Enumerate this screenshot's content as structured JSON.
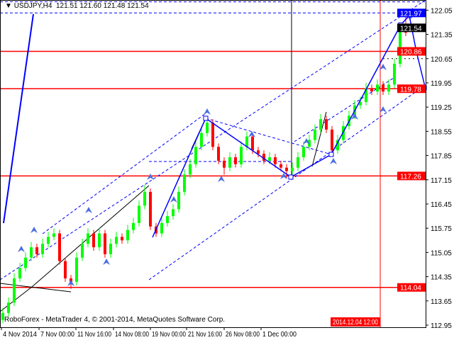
{
  "header": {
    "symbol": "USDJPY,H4",
    "ohlc": "121.51 121.60 121.48 121.54"
  },
  "footer": {
    "copyright": "RoboForex - MetaTrader 4, © 2001-2014, MetaQuotes Software Corp."
  },
  "chart_data": {
    "type": "candlestick",
    "title": "USDJPY,H4",
    "ylim": [
      112.95,
      122.25
    ],
    "y_ticks": [
      "122.05",
      "121.35",
      "120.65",
      "119.95",
      "119.25",
      "118.55",
      "117.85",
      "117.15",
      "116.45",
      "115.75",
      "115.05",
      "114.35",
      "113.65",
      "112.95"
    ],
    "x_ticks": [
      "4 Nov 2014",
      "7 Nov 00:00",
      "11 Nov 16:00",
      "14 Nov 08:00",
      "19 Nov 00:00",
      "21 Nov 16:00",
      "26 Nov 08:00",
      "1 Dec 00:00"
    ],
    "x_cursor_label": "2014.12.04 12:00",
    "current_price": "121.54",
    "price_levels": [
      {
        "label": "121.97",
        "value": 121.97,
        "color": "#0000ff",
        "style": "dashed"
      },
      {
        "label": "120.86",
        "value": 120.86,
        "color": "#ff0000",
        "style": "solid"
      },
      {
        "label": "119.78",
        "value": 119.78,
        "color": "#ff0000",
        "style": "solid"
      },
      {
        "label": "117.26",
        "value": 117.26,
        "color": "#ff0000",
        "style": "solid"
      },
      {
        "label": "114.04",
        "value": 114.04,
        "color": "#ff0000",
        "style": "solid"
      }
    ],
    "colors": {
      "bull": "#00ff00",
      "bear": "#ff0000",
      "lines": "#0000ff",
      "levels": "#ff0000"
    },
    "candles": [
      [
        113.1,
        113.45,
        113.0,
        113.3
      ],
      [
        113.3,
        113.75,
        113.2,
        113.6
      ],
      [
        113.6,
        114.45,
        113.5,
        114.3
      ],
      [
        114.3,
        114.75,
        114.2,
        114.6
      ],
      [
        114.6,
        115.05,
        114.5,
        114.9
      ],
      [
        114.9,
        115.35,
        114.8,
        115.2
      ],
      [
        115.2,
        115.3,
        114.9,
        115.0
      ],
      [
        115.0,
        115.45,
        114.9,
        115.3
      ],
      [
        115.3,
        115.65,
        115.2,
        115.5
      ],
      [
        115.5,
        115.75,
        115.4,
        115.6
      ],
      [
        115.6,
        115.7,
        114.7,
        114.8
      ],
      [
        114.8,
        114.9,
        114.2,
        114.3
      ],
      [
        114.3,
        114.4,
        114.0,
        114.2
      ],
      [
        114.2,
        115.05,
        114.1,
        114.9
      ],
      [
        114.9,
        115.45,
        114.8,
        115.3
      ],
      [
        115.3,
        115.75,
        115.2,
        115.6
      ],
      [
        115.6,
        115.7,
        115.1,
        115.2
      ],
      [
        115.2,
        115.75,
        115.1,
        115.6
      ],
      [
        115.6,
        115.7,
        114.9,
        115.0
      ],
      [
        115.0,
        115.45,
        114.9,
        115.3
      ],
      [
        115.3,
        115.65,
        115.2,
        115.5
      ],
      [
        115.5,
        115.6,
        115.3,
        115.4
      ],
      [
        115.4,
        115.85,
        115.3,
        115.7
      ],
      [
        115.7,
        116.05,
        115.6,
        115.9
      ],
      [
        115.9,
        116.55,
        115.8,
        116.4
      ],
      [
        116.4,
        117.0,
        116.3,
        116.8
      ],
      [
        116.8,
        116.9,
        115.7,
        115.8
      ],
      [
        115.8,
        115.9,
        115.5,
        115.6
      ],
      [
        115.6,
        116.05,
        115.5,
        115.9
      ],
      [
        115.9,
        116.25,
        115.8,
        116.1
      ],
      [
        116.1,
        116.45,
        116.0,
        116.3
      ],
      [
        116.3,
        116.95,
        116.2,
        116.8
      ],
      [
        116.8,
        117.45,
        116.7,
        117.3
      ],
      [
        117.3,
        117.75,
        117.2,
        117.6
      ],
      [
        117.6,
        118.25,
        117.5,
        118.1
      ],
      [
        118.1,
        118.65,
        118.0,
        118.5
      ],
      [
        118.5,
        118.95,
        118.4,
        118.8
      ],
      [
        118.8,
        118.9,
        118.0,
        118.1
      ],
      [
        118.1,
        118.2,
        117.6,
        117.7
      ],
      [
        117.7,
        117.8,
        117.3,
        117.5
      ],
      [
        117.5,
        117.95,
        117.4,
        117.8
      ],
      [
        117.8,
        117.9,
        117.5,
        117.6
      ],
      [
        117.6,
        118.25,
        117.5,
        118.1
      ],
      [
        118.1,
        118.55,
        118.0,
        118.4
      ],
      [
        118.4,
        118.5,
        117.9,
        118.0
      ],
      [
        118.0,
        118.1,
        117.8,
        117.9
      ],
      [
        117.9,
        118.0,
        117.6,
        117.7
      ],
      [
        117.7,
        117.95,
        117.6,
        117.8
      ],
      [
        117.8,
        117.9,
        117.5,
        117.6
      ],
      [
        117.6,
        117.7,
        117.4,
        117.5
      ],
      [
        117.5,
        117.6,
        117.2,
        117.4
      ],
      [
        117.4,
        117.65,
        117.3,
        117.5
      ],
      [
        117.5,
        117.95,
        117.4,
        117.8
      ],
      [
        117.8,
        118.25,
        117.7,
        118.1
      ],
      [
        118.1,
        118.45,
        118.0,
        118.3
      ],
      [
        118.3,
        118.75,
        118.2,
        118.6
      ],
      [
        118.6,
        119.05,
        118.5,
        118.9
      ],
      [
        118.9,
        119.0,
        118.5,
        118.6
      ],
      [
        118.6,
        118.7,
        117.9,
        118.0
      ],
      [
        118.0,
        118.45,
        117.9,
        118.3
      ],
      [
        118.3,
        118.85,
        118.2,
        118.7
      ],
      [
        118.7,
        119.15,
        118.6,
        119.0
      ],
      [
        119.0,
        119.45,
        118.9,
        119.3
      ],
      [
        119.3,
        119.55,
        119.2,
        119.4
      ],
      [
        119.4,
        119.95,
        119.3,
        119.8
      ],
      [
        119.8,
        119.9,
        119.6,
        119.7
      ],
      [
        119.7,
        120.05,
        119.6,
        119.9
      ],
      [
        119.9,
        120.0,
        119.6,
        119.7
      ],
      [
        119.7,
        120.05,
        119.6,
        119.9
      ],
      [
        119.9,
        120.65,
        119.8,
        120.5
      ],
      [
        120.5,
        121.65,
        120.4,
        121.5
      ],
      [
        121.5,
        121.9,
        121.3,
        121.4
      ],
      [
        121.51,
        121.6,
        121.48,
        121.54
      ]
    ]
  }
}
